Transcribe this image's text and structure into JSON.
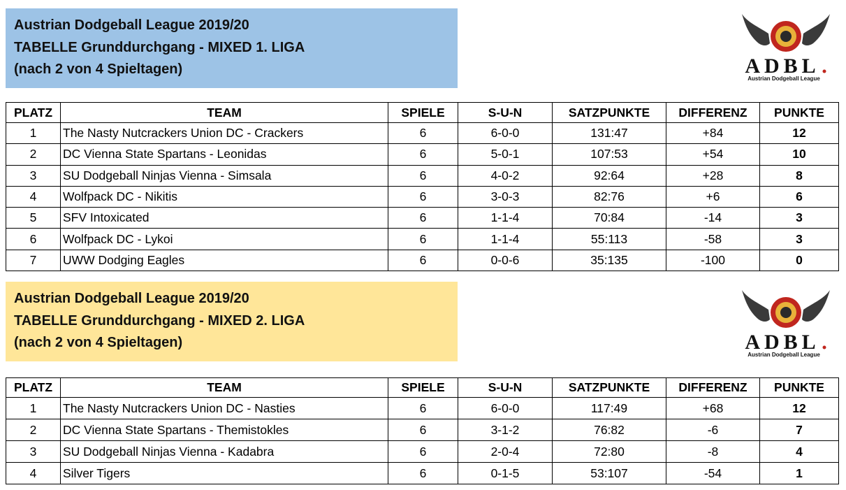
{
  "sections": [
    {
      "header": {
        "lines": [
          "Austrian Dodgeball League 2019/20",
          "TABELLE Grunddurchgang - MIXED 1. LIGA",
          "(nach 2 von 4 Spieltagen)"
        ]
      },
      "logo": {
        "title": "ADBL",
        "subtitle": "Austrian Dodgeball League"
      },
      "table": {
        "columns": [
          "PLATZ",
          "TEAM",
          "SPIELE",
          "S-U-N",
          "SATZPUNKTE",
          "DIFFERENZ",
          "PUNKTE"
        ],
        "rows": [
          [
            1,
            "The Nasty Nutcrackers Union DC - Crackers",
            6,
            "6-0-0",
            "131:47",
            "+84",
            12
          ],
          [
            2,
            "DC Vienna State Spartans - Leonidas",
            6,
            "5-0-1",
            "107:53",
            "+54",
            10
          ],
          [
            3,
            "SU Dodgeball Ninjas Vienna - Simsala",
            6,
            "4-0-2",
            "92:64",
            "+28",
            8
          ],
          [
            4,
            "Wolfpack DC - Nikitis",
            6,
            "3-0-3",
            "82:76",
            "+6",
            6
          ],
          [
            5,
            "SFV Intoxicated",
            6,
            "1-1-4",
            "70:84",
            -14,
            3
          ],
          [
            6,
            "Wolfpack DC - Lykoi",
            6,
            "1-1-4",
            "55:113",
            -58,
            3
          ],
          [
            7,
            "UWW Dodging Eagles",
            6,
            "0-0-6",
            "35:135",
            -100,
            0
          ]
        ]
      }
    },
    {
      "header": {
        "lines": [
          "Austrian Dodgeball League 2019/20",
          "TABELLE Grunddurchgang - MIXED 2. LIGA",
          "(nach 2 von 4 Spieltagen)"
        ]
      },
      "logo": {
        "title": "ADBL",
        "subtitle": "Austrian Dodgeball League"
      },
      "table": {
        "columns": [
          "PLATZ",
          "TEAM",
          "SPIELE",
          "S-U-N",
          "SATZPUNKTE",
          "DIFFERENZ",
          "PUNKTE"
        ],
        "rows": [
          [
            1,
            "The Nasty Nutcrackers Union DC - Nasties",
            6,
            "6-0-0",
            "117:49",
            "+68",
            12
          ],
          [
            2,
            "DC Vienna State Spartans - Themistokles",
            6,
            "3-1-2",
            "76:82",
            -6,
            7
          ],
          [
            3,
            "SU Dodgeball Ninjas Vienna - Kadabra",
            6,
            "2-0-4",
            "72:80",
            -8,
            4
          ],
          [
            4,
            "Silver Tigers",
            6,
            "0-1-5",
            "53:107",
            -54,
            1
          ]
        ]
      }
    }
  ]
}
